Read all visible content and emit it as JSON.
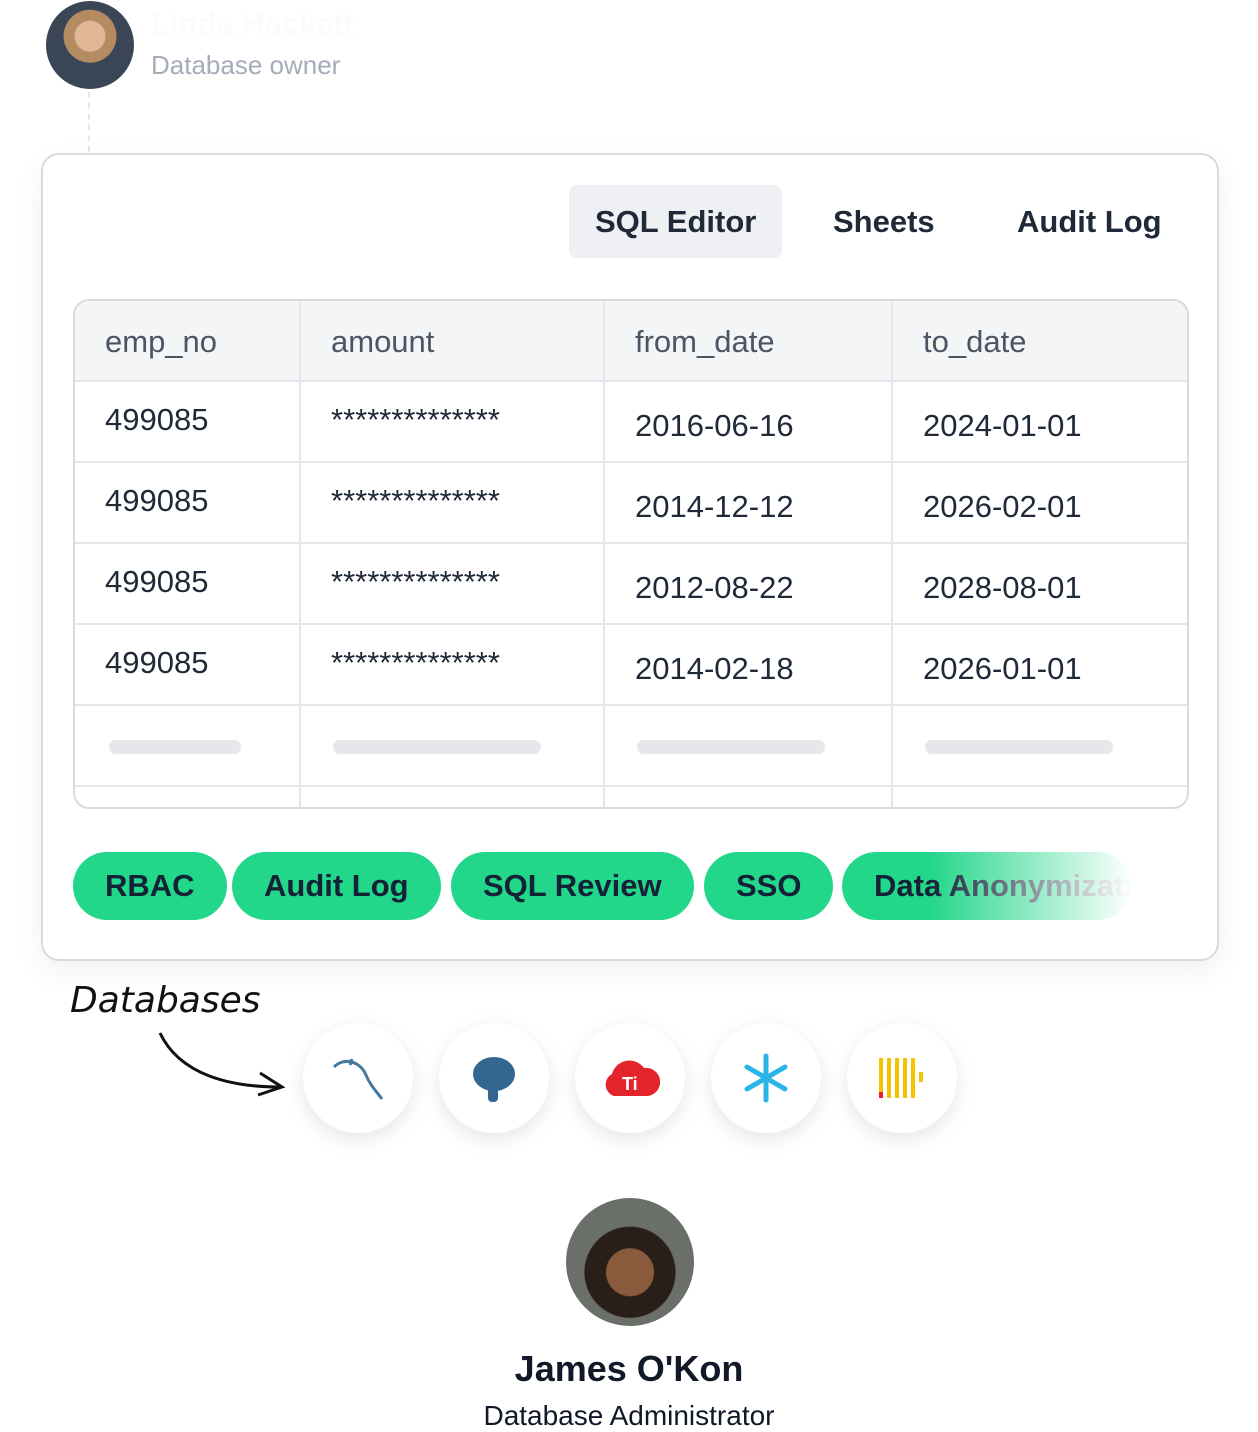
{
  "owner": {
    "name": "Linda Hackett",
    "role": "Database owner"
  },
  "tabs": [
    {
      "label": "SQL Editor",
      "active": true
    },
    {
      "label": "Sheets"
    },
    {
      "label": "Audit Log"
    }
  ],
  "table": {
    "columns": [
      "emp_no",
      "amount",
      "from_date",
      "to_date"
    ],
    "rows": [
      [
        "499085",
        "**************",
        "2016-06-16",
        "2024-01-01"
      ],
      [
        "499085",
        "**************",
        "2014-12-12",
        "2026-02-01"
      ],
      [
        "499085",
        "**************",
        "2012-08-22",
        "2028-08-01"
      ],
      [
        "499085",
        "**************",
        "2014-02-18",
        "2026-01-01"
      ]
    ]
  },
  "features": [
    "RBAC",
    "Audit Log",
    "SQL Review",
    "SSO",
    "Data Anonymization"
  ],
  "databases": {
    "label": "Databases",
    "items": [
      "mysql-icon",
      "postgresql-icon",
      "tidb-icon",
      "snowflake-icon",
      "clickhouse-icon"
    ]
  },
  "admin": {
    "name": "James O'Kon",
    "role": "Database Administrator"
  },
  "colors": {
    "accent": "#22d68a"
  }
}
